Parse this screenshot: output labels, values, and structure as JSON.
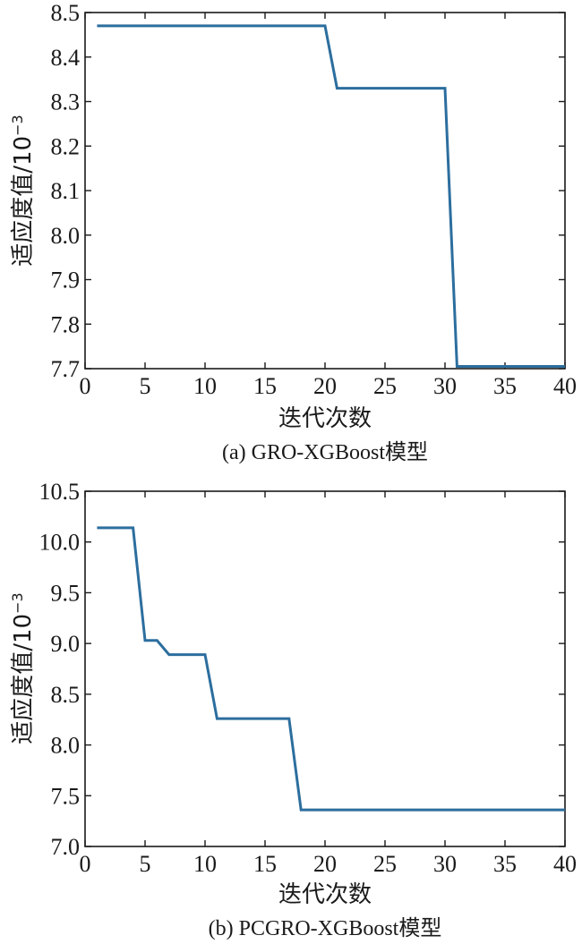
{
  "chart_data": [
    {
      "type": "line",
      "caption": "(a) GRO-XGBoost模型",
      "xlabel": "迭代次数",
      "ylabel": "适应度值/10",
      "ylabel_sup": "−3",
      "xlim": [
        0,
        40
      ],
      "ylim": [
        7.7,
        8.5
      ],
      "xticks": [
        0,
        5,
        10,
        15,
        20,
        25,
        30,
        35,
        40
      ],
      "yticks": [
        "7.7",
        "7.8",
        "7.9",
        "8.0",
        "8.1",
        "8.2",
        "8.3",
        "8.4",
        "8.5"
      ],
      "grid": false,
      "color": "#2c6e9e",
      "series": [
        {
          "x": [
            1,
            20,
            21,
            30,
            31,
            40
          ],
          "y": [
            8.47,
            8.47,
            8.33,
            8.33,
            7.705,
            7.705
          ]
        }
      ]
    },
    {
      "type": "line",
      "caption": "(b) PCGRO-XGBoost模型",
      "xlabel": "迭代次数",
      "ylabel": "适应度值/10",
      "ylabel_sup": "−3",
      "xlim": [
        0,
        40
      ],
      "ylim": [
        7.0,
        10.5
      ],
      "xticks": [
        0,
        5,
        10,
        15,
        20,
        25,
        30,
        35,
        40
      ],
      "yticks": [
        "7.0",
        "7.5",
        "8.0",
        "8.5",
        "9.0",
        "9.5",
        "10.0",
        "10.5"
      ],
      "grid": false,
      "color": "#2c6e9e",
      "series": [
        {
          "x": [
            1,
            4,
            5,
            6,
            7,
            10,
            11,
            17,
            18,
            40
          ],
          "y": [
            10.14,
            10.14,
            9.03,
            9.03,
            8.89,
            8.89,
            8.26,
            8.26,
            7.36,
            7.36
          ]
        }
      ]
    }
  ]
}
